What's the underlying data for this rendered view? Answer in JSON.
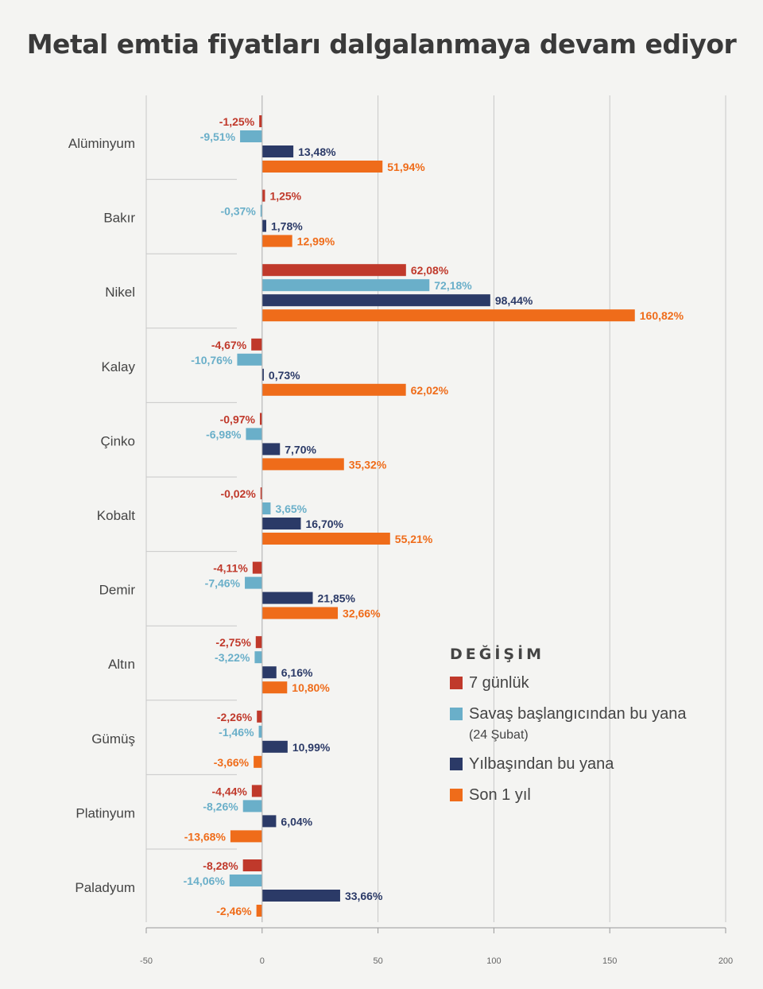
{
  "title": "Metal emtia fiyatları dalgalanmaya devam ediyor",
  "colors": {
    "s7": "#c0392b",
    "savas": "#6aafc9",
    "yilbasi": "#2b3a67",
    "son1": "#ef6c1a",
    "axis": "#c8c8c8",
    "label": "#444444"
  },
  "legend": {
    "title": "DEĞİŞİM",
    "items": [
      {
        "label": "7 günlük",
        "sub": ""
      },
      {
        "label": "Savaş başlangıcından bu yana",
        "sub": "(24 Şubat)"
      },
      {
        "label": "Yılbaşından bu yana",
        "sub": ""
      },
      {
        "label": "Son 1 yıl",
        "sub": ""
      }
    ]
  },
  "chart_data": {
    "type": "bar",
    "orientation": "horizontal",
    "title": "Metal emtia fiyatları dalgalanmaya devam ediyor",
    "categories": [
      "Alüminyum",
      "Bakır",
      "Nikel",
      "Kalay",
      "Çinko",
      "Kobalt",
      "Demir",
      "Altın",
      "Gümüş",
      "Platinyum",
      "Paladyum"
    ],
    "xlim": [
      -50,
      200
    ],
    "xticks": [
      "-50",
      "0",
      "50",
      "100",
      "150",
      "200"
    ],
    "grid": true,
    "legend_position": "right-bottom",
    "series": [
      {
        "name": "7 günlük",
        "values": [
          -1.25,
          1.25,
          62.08,
          -4.67,
          -0.97,
          -0.02,
          -4.11,
          -2.75,
          -2.26,
          -4.44,
          -8.28
        ],
        "labels": [
          "-1,25%",
          "1,25%",
          "62,08%",
          "-4,67%",
          "-0,97%",
          "-0,02%",
          "-4,11%",
          "-2,75%",
          "-2,26%",
          "-4,44%",
          "-8,28%"
        ]
      },
      {
        "name": "Savaş başlangıcından bu yana (24 Şubat)",
        "values": [
          -9.51,
          -0.37,
          72.18,
          -10.76,
          -6.98,
          3.65,
          -7.46,
          -3.22,
          -1.46,
          -8.26,
          -14.06
        ],
        "labels": [
          "-9,51%",
          "-0,37%",
          "72,18%",
          "-10,76%",
          "-6,98%",
          "3,65%",
          "-7,46%",
          "-3,22%",
          "-1,46%",
          "-8,26%",
          "-14,06%"
        ]
      },
      {
        "name": "Yılbaşından bu yana",
        "values": [
          13.48,
          1.78,
          98.44,
          0.73,
          7.7,
          16.7,
          21.85,
          6.16,
          10.99,
          6.04,
          33.66
        ],
        "labels": [
          "13,48%",
          "1,78%",
          "98,44%",
          "0,73%",
          "7,70%",
          "16,70%",
          "21,85%",
          "6,16%",
          "10,99%",
          "6,04%",
          "33,66%"
        ]
      },
      {
        "name": "Son 1 yıl",
        "values": [
          51.94,
          12.99,
          160.82,
          62.02,
          35.32,
          55.21,
          32.66,
          10.8,
          -3.66,
          -13.68,
          -2.46
        ],
        "labels": [
          "51,94%",
          "12,99%",
          "160,82%",
          "62,02%",
          "35,32%",
          "55,21%",
          "32,66%",
          "10,80%",
          "-3,66%",
          "-13,68%",
          "-2,46%"
        ]
      }
    ]
  }
}
